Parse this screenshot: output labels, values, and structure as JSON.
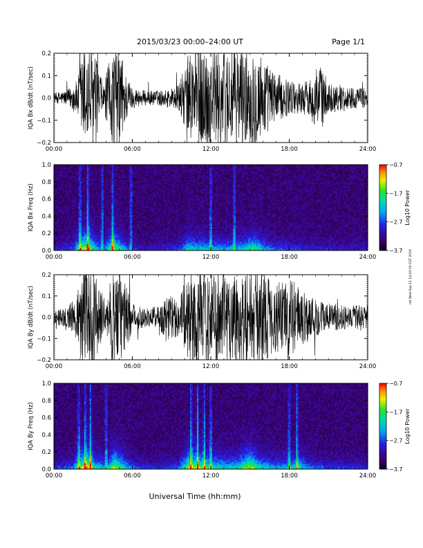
{
  "header": {
    "title": "2015/03/23  00:00–24:00 UT",
    "page": "Page 1/1"
  },
  "side_stamp": "ntt Wed Sep 11 14:43:00 CST 2019",
  "xlabel": "Universal Time (hh:mm)",
  "chart_data": [
    {
      "type": "line",
      "name": "panel-bx-waveform",
      "ylabel": "IQA Bx dB/dt (nT/sec)",
      "xlim": [
        0,
        24
      ],
      "ylim": [
        -0.2,
        0.2
      ],
      "yticks": [
        "0.2",
        "0.1",
        "0.0",
        "−0.1",
        "−0.2"
      ],
      "yticks_values": [
        0.2,
        0.1,
        0.0,
        -0.1,
        -0.2
      ],
      "xticks": [
        "00:00",
        "06:00",
        "12:00",
        "18:00",
        "24:00"
      ],
      "envelope": {
        "hours": [
          0,
          1,
          1.8,
          2.2,
          2.6,
          3.0,
          3.3,
          3.8,
          4.3,
          4.6,
          5.1,
          5.5,
          6.0,
          7.0,
          8.5,
          9.5,
          10.0,
          10.8,
          12.0,
          13.0,
          14.0,
          15.0,
          15.6,
          16.5,
          17.5,
          18.5,
          19.5,
          20.3,
          21.0,
          22.0,
          23.0,
          24.0
        ],
        "amplitude": [
          0.02,
          0.03,
          0.07,
          0.2,
          0.2,
          0.2,
          0.14,
          0.05,
          0.16,
          0.2,
          0.2,
          0.1,
          0.04,
          0.03,
          0.03,
          0.05,
          0.12,
          0.2,
          0.2,
          0.2,
          0.2,
          0.18,
          0.2,
          0.12,
          0.08,
          0.06,
          0.07,
          0.14,
          0.06,
          0.05,
          0.04,
          0.04
        ]
      }
    },
    {
      "type": "heatmap",
      "name": "panel-bx-spectrogram",
      "ylabel": "IQA Bx Freq (Hz)",
      "xlim": [
        0,
        24
      ],
      "ylim": [
        0,
        1.0
      ],
      "yticks": [
        "1.0",
        "0.8",
        "0.6",
        "0.4",
        "0.2",
        "0.0"
      ],
      "yticks_values": [
        1.0,
        0.8,
        0.6,
        0.4,
        0.2,
        0.0
      ],
      "xticks": [
        "00:00",
        "06:00",
        "12:00",
        "18:00",
        "24:00"
      ],
      "colorbar": {
        "label": "Log10 Power",
        "ticks": [
          "−0.7",
          "−1.7",
          "−2.7",
          "−3.7"
        ],
        "range": [
          -3.7,
          -0.7
        ]
      },
      "activity": {
        "hours": [
          0,
          1.5,
          2.0,
          2.6,
          3.2,
          3.8,
          4.5,
          5.0,
          5.8,
          7.0,
          9.5,
          10.3,
          11.0,
          12.0,
          13.0,
          14.5,
          15.2,
          16.5,
          18.0,
          20.0,
          22.0,
          24.0
        ],
        "level": [
          0.15,
          0.3,
          0.7,
          0.9,
          0.5,
          0.3,
          0.8,
          0.6,
          0.25,
          0.15,
          0.25,
          0.55,
          0.5,
          0.45,
          0.4,
          0.5,
          0.65,
          0.35,
          0.25,
          0.2,
          0.18,
          0.15
        ]
      },
      "bursts": [
        2.0,
        2.6,
        3.7,
        4.5,
        5.9,
        12.0,
        13.8
      ]
    },
    {
      "type": "line",
      "name": "panel-by-waveform",
      "ylabel": "IQA By dB/dt (nT/sec)",
      "xlim": [
        0,
        24
      ],
      "ylim": [
        -0.2,
        0.2
      ],
      "yticks": [
        "0.2",
        "0.1",
        "0.0",
        "−0.1",
        "−0.2"
      ],
      "yticks_values": [
        0.2,
        0.1,
        0.0,
        -0.1,
        -0.2
      ],
      "xticks": [
        "00:00",
        "06:00",
        "12:00",
        "18:00",
        "24:00"
      ],
      "envelope": {
        "hours": [
          0,
          1,
          1.7,
          2.1,
          2.6,
          3.0,
          3.5,
          4.0,
          4.5,
          5.0,
          5.5,
          6.0,
          7.0,
          8.0,
          8.8,
          9.5,
          10.5,
          12.0,
          13.0,
          14.0,
          15.0,
          16.0,
          17.0,
          18.0,
          19.0,
          20.0,
          21.0,
          22.0,
          23.0,
          24.0
        ],
        "amplitude": [
          0.03,
          0.04,
          0.09,
          0.2,
          0.2,
          0.2,
          0.12,
          0.06,
          0.2,
          0.2,
          0.14,
          0.06,
          0.04,
          0.05,
          0.1,
          0.08,
          0.2,
          0.2,
          0.2,
          0.2,
          0.2,
          0.2,
          0.14,
          0.16,
          0.12,
          0.08,
          0.06,
          0.05,
          0.05,
          0.05
        ]
      }
    },
    {
      "type": "heatmap",
      "name": "panel-by-spectrogram",
      "ylabel": "IQA By Freq (Hz)",
      "xlim": [
        0,
        24
      ],
      "ylim": [
        0,
        1.0
      ],
      "yticks": [
        "1.0",
        "0.8",
        "0.6",
        "0.4",
        "0.2",
        "0.0"
      ],
      "yticks_values": [
        1.0,
        0.8,
        0.6,
        0.4,
        0.2,
        0.0
      ],
      "xticks": [
        "00:00",
        "06:00",
        "12:00",
        "18:00",
        "24:00"
      ],
      "colorbar": {
        "label": "Log10 Power",
        "ticks": [
          "−0.7",
          "−1.7",
          "−2.7",
          "−3.7"
        ],
        "range": [
          -3.7,
          -0.7
        ]
      },
      "activity": {
        "hours": [
          0,
          1.5,
          2.0,
          2.6,
          3.2,
          4.0,
          4.6,
          5.2,
          6.0,
          7.5,
          9.5,
          10.3,
          11.0,
          12.0,
          13.0,
          14.0,
          15.0,
          16.0,
          17.0,
          18.0,
          18.7,
          19.5,
          21.0,
          24.0
        ],
        "level": [
          0.2,
          0.35,
          0.75,
          0.9,
          0.55,
          0.4,
          0.8,
          0.6,
          0.3,
          0.2,
          0.3,
          0.8,
          0.75,
          0.6,
          0.5,
          0.55,
          0.8,
          0.5,
          0.4,
          0.45,
          0.6,
          0.35,
          0.25,
          0.2
        ]
      },
      "bursts": [
        1.9,
        2.4,
        2.8,
        4.0,
        10.5,
        11.0,
        11.5,
        12.0,
        18.0,
        18.6
      ]
    }
  ]
}
